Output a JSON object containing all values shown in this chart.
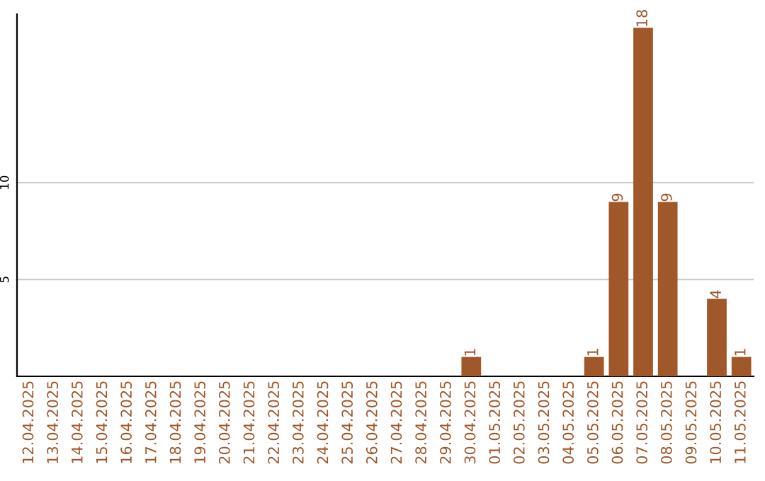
{
  "chart_data": {
    "type": "bar",
    "categories": [
      "12.04.2025",
      "13.04.2025",
      "14.04.2025",
      "15.04.2025",
      "16.04.2025",
      "17.04.2025",
      "18.04.2025",
      "19.04.2025",
      "20.04.2025",
      "21.04.2025",
      "22.04.2025",
      "23.04.2025",
      "24.04.2025",
      "25.04.2025",
      "26.04.2025",
      "27.04.2025",
      "28.04.2025",
      "29.04.2025",
      "30.04.2025",
      "01.05.2025",
      "02.05.2025",
      "03.05.2025",
      "04.05.2025",
      "05.05.2025",
      "06.05.2025",
      "07.05.2025",
      "08.05.2025",
      "09.05.2025",
      "10.05.2025",
      "11.05.2025"
    ],
    "values": [
      0,
      0,
      0,
      0,
      0,
      0,
      0,
      0,
      0,
      0,
      0,
      0,
      0,
      0,
      0,
      0,
      0,
      0,
      1,
      0,
      0,
      0,
      0,
      1,
      9,
      18,
      9,
      0,
      4,
      1
    ],
    "value_labels": [
      null,
      null,
      null,
      null,
      null,
      null,
      null,
      null,
      null,
      null,
      null,
      null,
      null,
      null,
      null,
      null,
      null,
      null,
      "1",
      null,
      null,
      null,
      null,
      "1",
      "9",
      "18",
      "9",
      null,
      "4",
      "1"
    ],
    "color": "#a0572a",
    "ylim": [
      0,
      18.7
    ],
    "yticks": [
      5,
      10
    ],
    "grid": "y"
  }
}
